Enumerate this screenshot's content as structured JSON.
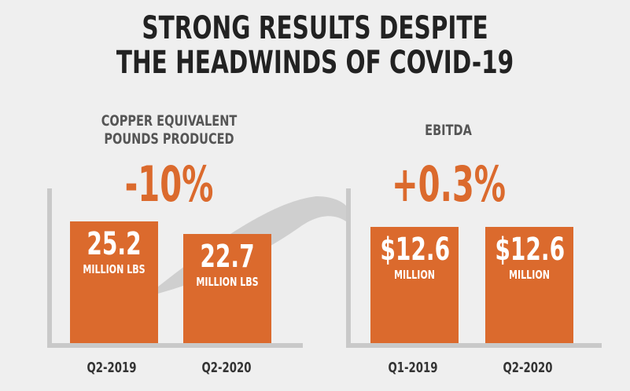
{
  "title": {
    "line1": "STRONG RESULTS DESPITE",
    "line2": "THE HEADWINDS OF COVID-19"
  },
  "chart_data": [
    {
      "type": "bar",
      "title_lines": [
        "COPPER EQUIVALENT",
        "POUNDS PRODUCED"
      ],
      "change": "-10%",
      "categories": [
        "Q2-2019",
        "Q2-2020"
      ],
      "values": [
        25.2,
        22.7
      ],
      "value_labels": [
        "25.2",
        "22.7"
      ],
      "unit": "MILLION LBS"
    },
    {
      "type": "bar",
      "title_lines": [
        "EBITDA"
      ],
      "change": "+0.3%",
      "categories": [
        "Q1-2019",
        "Q2-2020"
      ],
      "values": [
        12.6,
        12.6
      ],
      "value_labels": [
        "$12.6",
        "$12.6"
      ],
      "unit": "MILLION"
    }
  ],
  "colors": {
    "bar": "#db6a2d",
    "change": "#db6a2d",
    "axis": "#c9c9c9",
    "background": "#efefef"
  }
}
